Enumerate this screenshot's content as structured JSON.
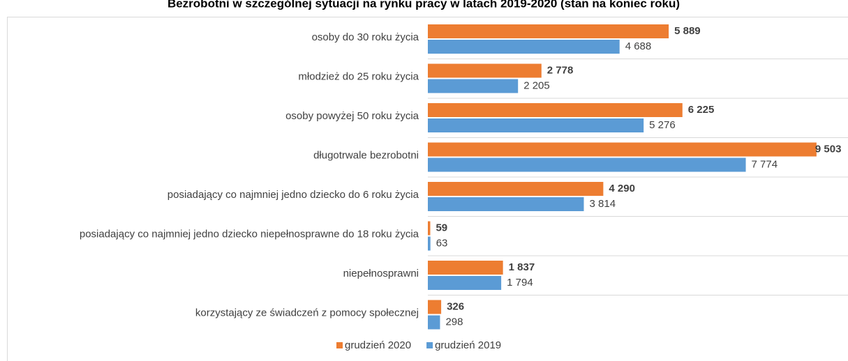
{
  "chart_data": {
    "type": "hbar",
    "title": "Bezrobotni w szczególnej sytuacji na rynku pracy w latach 2019-2020 (stan na koniec roku)",
    "categories": [
      "osoby do 30 roku życia",
      "młodzież do 25 roku życia",
      "osoby powyżej 50 roku życia",
      "długotrwale bezrobotni",
      "posiadający co najmniej jedno dziecko do 6 roku życia",
      "posiadający co najmniej jedno dziecko niepełnosprawne do 18 roku życia",
      "niepełnosprawni",
      "korzystający ze świadczeń z pomocy społecznej"
    ],
    "series": [
      {
        "name": "grudzień 2020",
        "color": "#ED7D31",
        "values": [
          5889,
          2778,
          6225,
          9503,
          4290,
          59,
          1837,
          326
        ],
        "value_labels": [
          "5 889",
          "2 778",
          "6 225",
          "9 503",
          "4 290",
          "59",
          "1 837",
          "326"
        ]
      },
      {
        "name": "grudzień 2019",
        "color": "#5B9BD5",
        "values": [
          4688,
          2205,
          5276,
          7774,
          3814,
          63,
          1794,
          298
        ],
        "value_labels": [
          "4 688",
          "2 205",
          "5 276",
          "7 774",
          "3 814",
          "63",
          "1 794",
          "298"
        ]
      }
    ],
    "xlim": [
      0,
      10000
    ],
    "legend": "bottom"
  }
}
